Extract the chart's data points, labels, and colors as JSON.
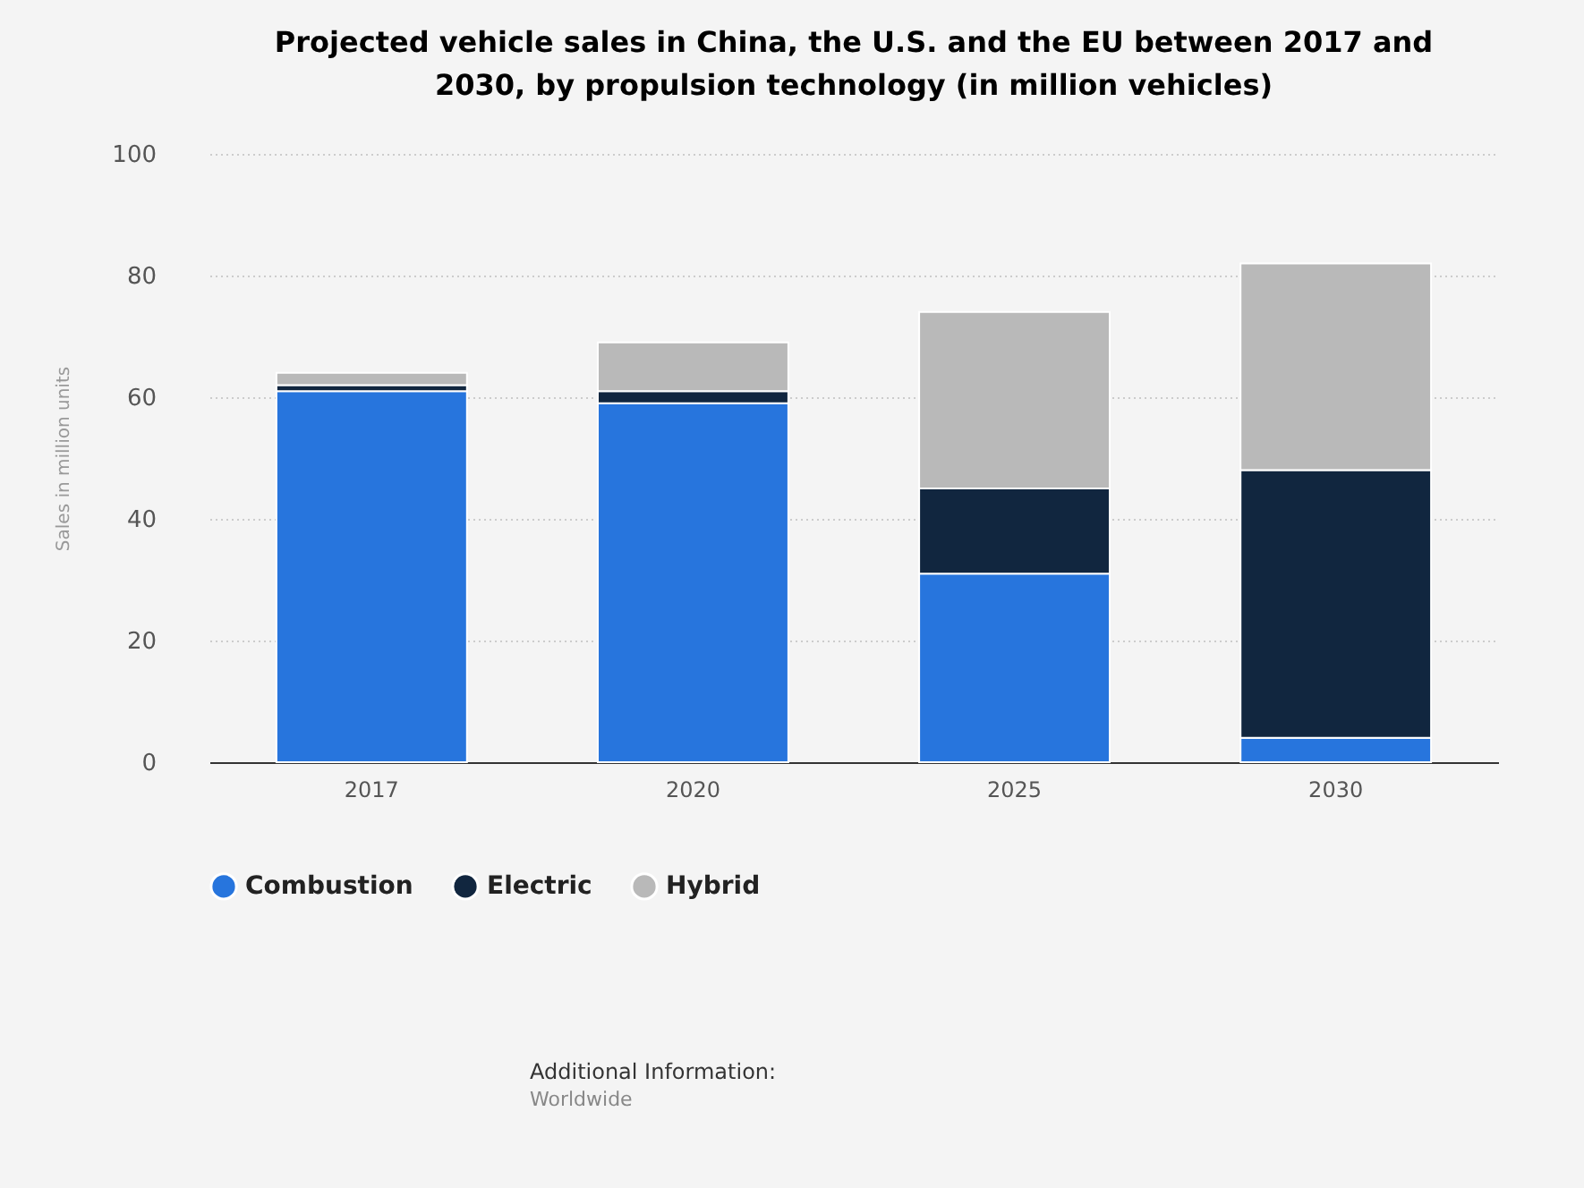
{
  "chart_data": {
    "type": "bar",
    "stacked": true,
    "title": "Projected vehicle sales in China, the U.S. and the EU between 2017 and 2030, by propulsion technology (in million vehicles)",
    "ylabel": "Sales in million units",
    "categories": [
      "2017",
      "2020",
      "2025",
      "2030"
    ],
    "series": [
      {
        "name": "Combustion",
        "color": "#2775dd",
        "values": [
          61,
          59,
          31,
          4
        ]
      },
      {
        "name": "Electric",
        "color": "#11263f",
        "values": [
          1,
          2,
          14,
          44
        ]
      },
      {
        "name": "Hybrid",
        "color": "#b9b9b9",
        "values": [
          2,
          8,
          29,
          34
        ]
      }
    ],
    "ylim": [
      0,
      100
    ],
    "yticks": [
      0,
      20,
      40,
      60,
      80,
      100
    ],
    "grid": "y",
    "legend": "bottom",
    "annotations": [
      "Additional Information:",
      "Worldwide"
    ]
  }
}
